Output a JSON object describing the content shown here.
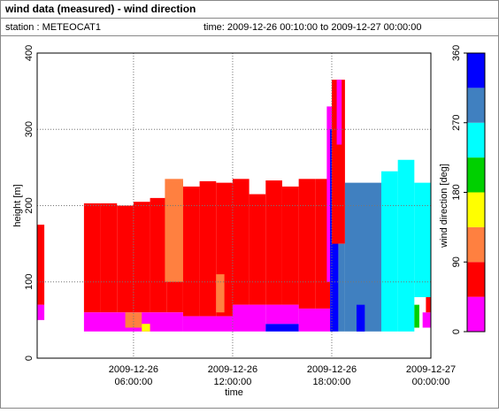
{
  "header": {
    "title": "wind data (measured) - wind direction",
    "station": "station : METEOCAT1",
    "time": "time: 2009-12-26 00:10:00 to 2009-12-27 00:00:00"
  },
  "chart_data": {
    "type": "heatmap",
    "xlabel": "time",
    "ylabel": "height [m]",
    "colorbar_label": "wind direction [deg]",
    "xlim": [
      0.1667,
      24
    ],
    "xticks": [
      {
        "value": 6,
        "label": "2009-12-26 06:00:00"
      },
      {
        "value": 12,
        "label": "2009-12-26 12:00:00"
      },
      {
        "value": 18,
        "label": "2009-12-26 18:00:00"
      },
      {
        "value": 24,
        "label": "2009-12-27 00:00:00"
      }
    ],
    "ylim": [
      0,
      400
    ],
    "yticks": [
      0,
      100,
      200,
      300,
      400
    ],
    "grid": true,
    "clim": [
      0,
      360
    ],
    "cticks": [
      0,
      90,
      180,
      270,
      360
    ],
    "color_bins": [
      0,
      45,
      90,
      135,
      180,
      225,
      270,
      315,
      360
    ],
    "colors": [
      "#ff00ff",
      "#ff0000",
      "#ff8040",
      "#ffff00",
      "#00d000",
      "#00ffff",
      "#4080c0",
      "#0000ff"
    ],
    "blocks": [
      {
        "t0": 0.17,
        "t1": 0.6,
        "h0": 70,
        "h1": 175,
        "value": 70
      },
      {
        "t0": 0.17,
        "t1": 0.6,
        "h0": 50,
        "h1": 70,
        "value": 20
      },
      {
        "t0": 3,
        "t1": 4,
        "h0": 60,
        "h1": 203,
        "value": 70
      },
      {
        "t0": 4,
        "t1": 5,
        "h0": 60,
        "h1": 203,
        "value": 70
      },
      {
        "t0": 5,
        "t1": 6,
        "h0": 60,
        "h1": 200,
        "value": 70
      },
      {
        "t0": 6,
        "t1": 7,
        "h0": 60,
        "h1": 205,
        "value": 70
      },
      {
        "t0": 7,
        "t1": 8,
        "h0": 60,
        "h1": 210,
        "value": 70
      },
      {
        "t0": 8,
        "t1": 9,
        "h0": 60,
        "h1": 232,
        "value": 70
      },
      {
        "t0": 9,
        "t1": 10,
        "h0": 55,
        "h1": 225,
        "value": 70
      },
      {
        "t0": 10,
        "t1": 11,
        "h0": 55,
        "h1": 232,
        "value": 70
      },
      {
        "t0": 11,
        "t1": 12,
        "h0": 55,
        "h1": 230,
        "value": 70
      },
      {
        "t0": 12,
        "t1": 13,
        "h0": 70,
        "h1": 235,
        "value": 70
      },
      {
        "t0": 13,
        "t1": 14,
        "h0": 70,
        "h1": 215,
        "value": 70
      },
      {
        "t0": 14,
        "t1": 15,
        "h0": 70,
        "h1": 233,
        "value": 70
      },
      {
        "t0": 15,
        "t1": 16,
        "h0": 70,
        "h1": 225,
        "value": 70
      },
      {
        "t0": 16,
        "t1": 17,
        "h0": 65,
        "h1": 235,
        "value": 70
      },
      {
        "t0": 17,
        "t1": 17.9,
        "h0": 65,
        "h1": 235,
        "value": 70
      },
      {
        "t0": 3,
        "t1": 9,
        "h0": 35,
        "h1": 60,
        "value": 20
      },
      {
        "t0": 9,
        "t1": 12,
        "h0": 35,
        "h1": 55,
        "value": 20
      },
      {
        "t0": 12,
        "t1": 14,
        "h0": 35,
        "h1": 70,
        "value": 20
      },
      {
        "t0": 14,
        "t1": 16,
        "h0": 35,
        "h1": 45,
        "value": 340
      },
      {
        "t0": 14,
        "t1": 16,
        "h0": 45,
        "h1": 70,
        "value": 20
      },
      {
        "t0": 16,
        "t1": 17.9,
        "h0": 35,
        "h1": 65,
        "value": 20
      },
      {
        "t0": 7.9,
        "t1": 9,
        "h0": 100,
        "h1": 235,
        "value": 110
      },
      {
        "t0": 5.5,
        "t1": 6.5,
        "h0": 40,
        "h1": 60,
        "value": 110
      },
      {
        "t0": 6.5,
        "t1": 7,
        "h0": 35,
        "h1": 45,
        "value": 160
      },
      {
        "t0": 11,
        "t1": 11.5,
        "h0": 60,
        "h1": 110,
        "value": 110
      },
      {
        "t0": 17.7,
        "t1": 18,
        "h0": 100,
        "h1": 330,
        "value": 20
      },
      {
        "t0": 17.9,
        "t1": 18.4,
        "h0": 35,
        "h1": 300,
        "value": 340
      },
      {
        "t0": 18,
        "t1": 18.8,
        "h0": 150,
        "h1": 365,
        "value": 70
      },
      {
        "t0": 18.3,
        "t1": 18.6,
        "h0": 280,
        "h1": 365,
        "value": 20
      },
      {
        "t0": 18.4,
        "t1": 18.8,
        "h0": 35,
        "h1": 150,
        "value": 290
      },
      {
        "t0": 18.8,
        "t1": 21,
        "h0": 35,
        "h1": 230,
        "value": 290
      },
      {
        "t0": 19.5,
        "t1": 20,
        "h0": 35,
        "h1": 70,
        "value": 340
      },
      {
        "t0": 21,
        "t1": 22,
        "h0": 35,
        "h1": 245,
        "value": 250
      },
      {
        "t0": 22,
        "t1": 23,
        "h0": 35,
        "h1": 260,
        "value": 250
      },
      {
        "t0": 23,
        "t1": 24,
        "h0": 80,
        "h1": 230,
        "value": 250
      },
      {
        "t0": 23,
        "t1": 23.3,
        "h0": 40,
        "h1": 70,
        "value": 200
      },
      {
        "t0": 23.5,
        "t1": 24,
        "h0": 40,
        "h1": 60,
        "value": 20
      },
      {
        "t0": 23.7,
        "t1": 24,
        "h0": 60,
        "h1": 80,
        "value": 70
      }
    ]
  }
}
